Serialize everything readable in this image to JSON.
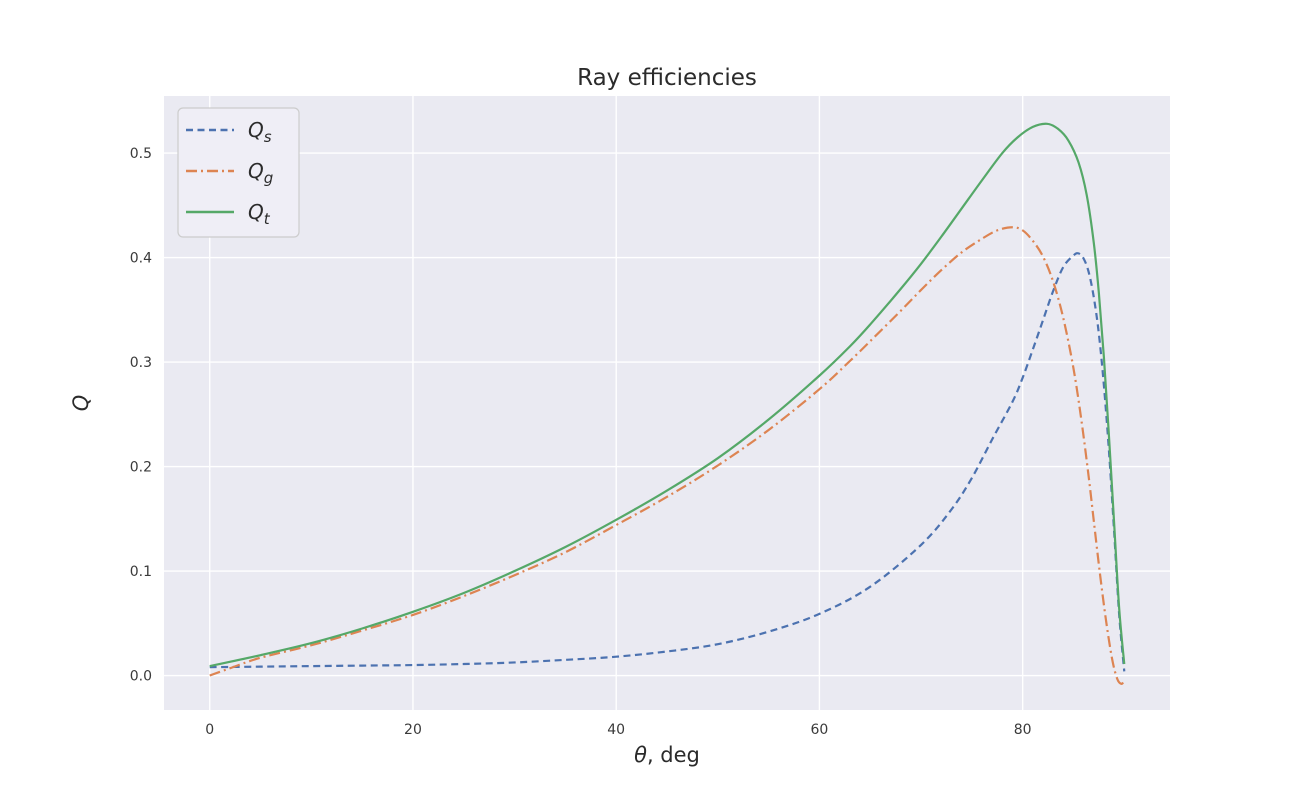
{
  "figure": {
    "title": "Ray efficiencies",
    "colors": {
      "axes_background": "#eaeaf2",
      "figure_background": "#ffffff",
      "grid": "#ffffff",
      "title_text": "#2b2b2b",
      "tick_text": "#3a3a3a",
      "legend_face": "#efeef6",
      "legend_edge": "#cccccc"
    }
  },
  "chart_data": {
    "type": "line",
    "title": "Ray efficiencies",
    "xlabel": "θ, deg",
    "xlabel_parts": [
      {
        "text": "θ",
        "italic": true
      },
      {
        "text": ", deg",
        "italic": false
      }
    ],
    "ylabel": "Q",
    "xlim": [
      -4.5,
      94.5
    ],
    "ylim": [
      -0.033,
      0.5546
    ],
    "xticks": [
      0,
      20,
      40,
      60,
      80
    ],
    "xticklabels": [
      "0",
      "20",
      "40",
      "60",
      "80"
    ],
    "yticks": [
      0.0,
      0.1,
      0.2,
      0.3,
      0.4,
      0.5
    ],
    "yticklabels": [
      "0.0",
      "0.1",
      "0.2",
      "0.3",
      "0.4",
      "0.5"
    ],
    "grid": true,
    "legend_position": "upper left",
    "series": [
      {
        "name": "Qs",
        "label_base": "Q",
        "label_sub": "s",
        "color": "#4c72b0",
        "style": "dashed",
        "points": [
          [
            0,
            0.008
          ],
          [
            5,
            0.0085
          ],
          [
            10,
            0.009
          ],
          [
            15,
            0.0095
          ],
          [
            20,
            0.01
          ],
          [
            25,
            0.011
          ],
          [
            30,
            0.0125
          ],
          [
            35,
            0.015
          ],
          [
            40,
            0.018
          ],
          [
            45,
            0.023
          ],
          [
            50,
            0.03
          ],
          [
            55,
            0.042
          ],
          [
            60,
            0.059
          ],
          [
            65,
            0.085
          ],
          [
            70,
            0.125
          ],
          [
            73,
            0.159
          ],
          [
            75,
            0.189
          ],
          [
            77,
            0.226
          ],
          [
            79,
            0.262
          ],
          [
            80,
            0.285
          ],
          [
            81,
            0.312
          ],
          [
            82,
            0.34
          ],
          [
            83,
            0.368
          ],
          [
            84,
            0.391
          ],
          [
            85,
            0.402
          ],
          [
            85.5,
            0.404
          ],
          [
            86,
            0.399
          ],
          [
            86.5,
            0.386
          ],
          [
            87,
            0.362
          ],
          [
            87.5,
            0.327
          ],
          [
            88,
            0.277
          ],
          [
            88.5,
            0.214
          ],
          [
            89,
            0.138
          ],
          [
            89.5,
            0.058
          ],
          [
            90,
            0.004
          ]
        ]
      },
      {
        "name": "Qg",
        "label_base": "Q",
        "label_sub": "g",
        "color": "#dd8452",
        "style": "dashdot",
        "points": [
          [
            0,
            0.0
          ],
          [
            2,
            0.007
          ],
          [
            5,
            0.017
          ],
          [
            10,
            0.029
          ],
          [
            15,
            0.043
          ],
          [
            20,
            0.058
          ],
          [
            25,
            0.076
          ],
          [
            30,
            0.096
          ],
          [
            35,
            0.118
          ],
          [
            40,
            0.144
          ],
          [
            45,
            0.171
          ],
          [
            50,
            0.201
          ],
          [
            55,
            0.235
          ],
          [
            60,
            0.274
          ],
          [
            63,
            0.301
          ],
          [
            65,
            0.32
          ],
          [
            68,
            0.349
          ],
          [
            70,
            0.369
          ],
          [
            72,
            0.388
          ],
          [
            74,
            0.405
          ],
          [
            76,
            0.418
          ],
          [
            77.5,
            0.426
          ],
          [
            79,
            0.429
          ],
          [
            80,
            0.426
          ],
          [
            81,
            0.416
          ],
          [
            82,
            0.401
          ],
          [
            83,
            0.377
          ],
          [
            84,
            0.342
          ],
          [
            85,
            0.294
          ],
          [
            85.8,
            0.243
          ],
          [
            86.5,
            0.19
          ],
          [
            87,
            0.148
          ],
          [
            87.6,
            0.098
          ],
          [
            88.2,
            0.053
          ],
          [
            88.8,
            0.016
          ],
          [
            89.3,
            -0.003
          ],
          [
            89.7,
            -0.008
          ],
          [
            90,
            -0.005
          ]
        ]
      },
      {
        "name": "Qt",
        "label_base": "Q",
        "label_sub": "t",
        "color": "#55a868",
        "style": "solid",
        "points": [
          [
            0,
            0.009
          ],
          [
            5,
            0.0195
          ],
          [
            10,
            0.031
          ],
          [
            15,
            0.045
          ],
          [
            20,
            0.061
          ],
          [
            25,
            0.079
          ],
          [
            30,
            0.1
          ],
          [
            35,
            0.123
          ],
          [
            40,
            0.149
          ],
          [
            45,
            0.177
          ],
          [
            50,
            0.208
          ],
          [
            55,
            0.245
          ],
          [
            60,
            0.287
          ],
          [
            63,
            0.315
          ],
          [
            65,
            0.336
          ],
          [
            68,
            0.37
          ],
          [
            70,
            0.394
          ],
          [
            72,
            0.42
          ],
          [
            74,
            0.447
          ],
          [
            76,
            0.474
          ],
          [
            78,
            0.5
          ],
          [
            79.5,
            0.515
          ],
          [
            81,
            0.525
          ],
          [
            82.4,
            0.528
          ],
          [
            83.5,
            0.523
          ],
          [
            84.5,
            0.512
          ],
          [
            85.5,
            0.491
          ],
          [
            86.3,
            0.46
          ],
          [
            87,
            0.414
          ],
          [
            87.5,
            0.366
          ],
          [
            88,
            0.304
          ],
          [
            88.5,
            0.228
          ],
          [
            89,
            0.146
          ],
          [
            89.5,
            0.064
          ],
          [
            90,
            0.011
          ]
        ]
      }
    ]
  }
}
